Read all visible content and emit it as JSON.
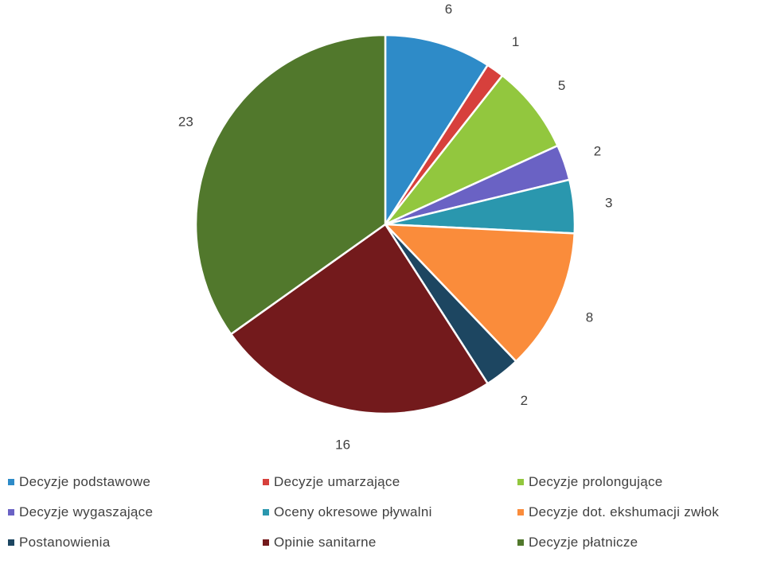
{
  "chart_data": {
    "type": "pie",
    "title": "",
    "legend_position": "bottom",
    "slices": [
      {
        "label": "Decyzje podstawowe",
        "value": 6,
        "color": "#2E8BC8"
      },
      {
        "label": "Decyzje umarzające",
        "value": 1,
        "color": "#D7403C"
      },
      {
        "label": "Decyzje prolongujące",
        "value": 5,
        "color": "#92C73E"
      },
      {
        "label": "Decyzje wygaszające",
        "value": 2,
        "color": "#6A62C4"
      },
      {
        "label": "Oceny okresowe pływalni",
        "value": 3,
        "color": "#2A97AE"
      },
      {
        "label": "Decyzje dot. ekshumacji zwłok",
        "value": 8,
        "color": "#FA8C3B"
      },
      {
        "label": "Postanowienia",
        "value": 2,
        "color": "#1D4661"
      },
      {
        "label": "Opinie sanitarne",
        "value": 16,
        "color": "#731A1C"
      },
      {
        "label": "Decyzje płatnicze",
        "value": 23,
        "color": "#51782C"
      }
    ]
  }
}
